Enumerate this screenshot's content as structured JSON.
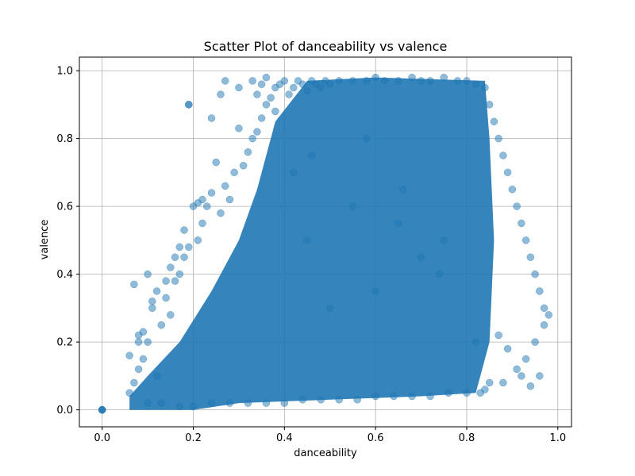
{
  "chart_data": {
    "type": "scatter",
    "title": "Scatter Plot of danceability vs valence",
    "xlabel": "danceability",
    "ylabel": "valence",
    "xlim": [
      -0.05,
      1.03
    ],
    "ylim": [
      -0.05,
      1.04
    ],
    "xticks": [
      0.0,
      0.2,
      0.4,
      0.6,
      0.8,
      1.0
    ],
    "xtick_labels": [
      "0.0",
      "0.2",
      "0.4",
      "0.6",
      "0.8",
      "1.0"
    ],
    "yticks": [
      0.0,
      0.2,
      0.4,
      0.6,
      0.8,
      1.0
    ],
    "ytick_labels": [
      "0.0",
      "0.2",
      "0.4",
      "0.6",
      "0.8",
      "1.0"
    ],
    "grid": true,
    "marker_color": "#1f77b4",
    "marker_alpha": 0.5,
    "series": [
      {
        "x": [
          0.0,
          0.0,
          0.0,
          0.0,
          0.06,
          0.07,
          0.08,
          0.08,
          0.09,
          0.1,
          0.11,
          0.12,
          0.13,
          0.14,
          0.15,
          0.16,
          0.17,
          0.18,
          0.19,
          0.19,
          0.21,
          0.22,
          0.23,
          0.24,
          0.26,
          0.27,
          0.28,
          0.29,
          0.3,
          0.31,
          0.32,
          0.33,
          0.34,
          0.35,
          0.36,
          0.37,
          0.38,
          0.39,
          0.4,
          0.41,
          0.42,
          0.43,
          0.44,
          0.45,
          0.46,
          0.47,
          0.48,
          0.49,
          0.5,
          0.52,
          0.55,
          0.58,
          0.6,
          0.62,
          0.65,
          0.68,
          0.7,
          0.72,
          0.75,
          0.78,
          0.8,
          0.82,
          0.84,
          0.85,
          0.86,
          0.87,
          0.88,
          0.89,
          0.9,
          0.91,
          0.92,
          0.93,
          0.94,
          0.95,
          0.96,
          0.97,
          0.98,
          0.95,
          0.93,
          0.96,
          0.97,
          0.94,
          0.91,
          0.89,
          0.87,
          0.85,
          0.83,
          0.27,
          0.26,
          0.24,
          0.19,
          0.3,
          0.33,
          0.35,
          0.38,
          0.36,
          0.34,
          0.25,
          0.22,
          0.21,
          0.2,
          0.18,
          0.17,
          0.16,
          0.15,
          0.14,
          0.12,
          0.11,
          0.1,
          0.09,
          0.08,
          0.07,
          0.06,
          0.1,
          0.13,
          0.17,
          0.2,
          0.24,
          0.28,
          0.32,
          0.36,
          0.4,
          0.44,
          0.48,
          0.52,
          0.56,
          0.6,
          0.64,
          0.68,
          0.72,
          0.76,
          0.8,
          0.84,
          0.88,
          0.92,
          0.45,
          0.55,
          0.65,
          0.75,
          0.5,
          0.6,
          0.7,
          0.42,
          0.46,
          0.58,
          0.66,
          0.74,
          0.82
        ],
        "y": [
          0.0,
          0.0,
          0.0,
          0.0,
          0.05,
          0.08,
          0.12,
          0.22,
          0.15,
          0.2,
          0.3,
          0.1,
          0.25,
          0.33,
          0.28,
          0.38,
          0.4,
          0.45,
          0.48,
          0.9,
          0.5,
          0.55,
          0.6,
          0.64,
          0.58,
          0.66,
          0.62,
          0.7,
          0.95,
          0.72,
          0.76,
          0.8,
          0.82,
          0.86,
          0.9,
          0.92,
          0.88,
          0.96,
          0.97,
          0.93,
          0.95,
          0.97,
          0.96,
          0.94,
          0.97,
          0.96,
          0.95,
          0.97,
          0.96,
          0.97,
          0.97,
          0.97,
          0.98,
          0.97,
          0.97,
          0.98,
          0.97,
          0.97,
          0.98,
          0.97,
          0.97,
          0.96,
          0.95,
          0.9,
          0.85,
          0.8,
          0.75,
          0.7,
          0.65,
          0.6,
          0.55,
          0.5,
          0.45,
          0.4,
          0.35,
          0.3,
          0.28,
          0.2,
          0.15,
          0.1,
          0.25,
          0.07,
          0.12,
          0.18,
          0.22,
          0.08,
          0.05,
          0.97,
          0.93,
          0.86,
          0.9,
          0.83,
          0.97,
          0.96,
          0.95,
          0.98,
          0.93,
          0.73,
          0.62,
          0.61,
          0.6,
          0.53,
          0.48,
          0.45,
          0.42,
          0.38,
          0.35,
          0.32,
          0.4,
          0.23,
          0.2,
          0.37,
          0.16,
          0.02,
          0.02,
          0.01,
          0.01,
          0.02,
          0.02,
          0.02,
          0.02,
          0.02,
          0.03,
          0.03,
          0.03,
          0.03,
          0.04,
          0.04,
          0.04,
          0.04,
          0.05,
          0.05,
          0.06,
          0.08,
          0.1,
          0.5,
          0.6,
          0.55,
          0.5,
          0.3,
          0.35,
          0.45,
          0.7,
          0.75,
          0.8,
          0.65,
          0.4,
          0.2
        ]
      }
    ]
  }
}
